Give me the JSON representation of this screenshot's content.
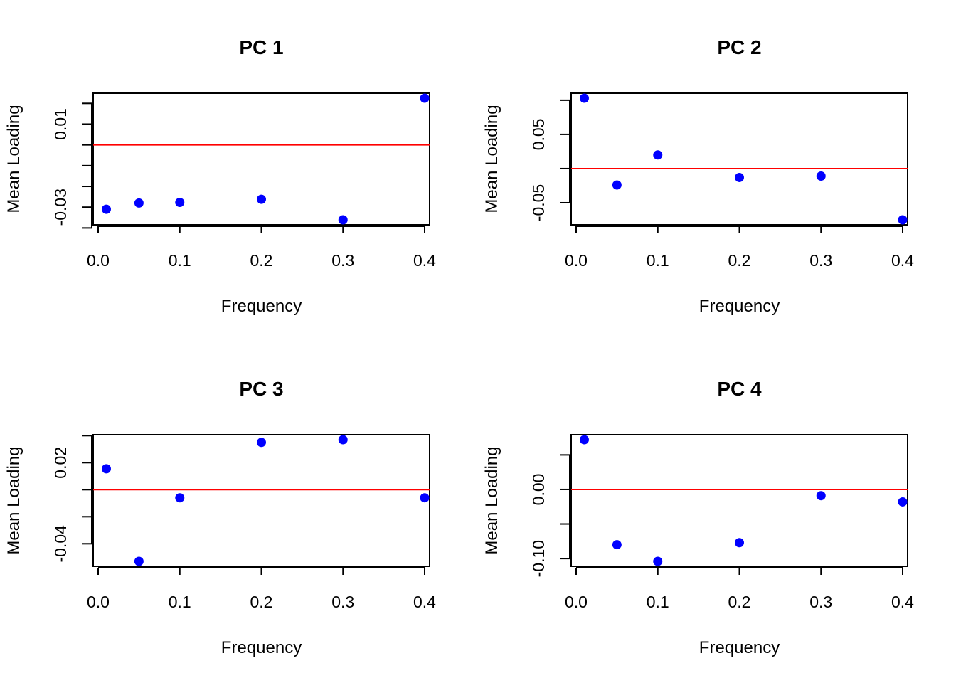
{
  "colors": {
    "points": "#0000ff",
    "reference_line": "#ff0000",
    "axes": "#000000"
  },
  "chart_data": [
    {
      "type": "scatter",
      "title": "PC 1",
      "xlabel": "Frequency",
      "ylabel": "Mean Loading",
      "x": [
        0.01,
        0.05,
        0.1,
        0.2,
        0.3,
        0.4
      ],
      "y": [
        -0.031,
        -0.028,
        -0.0277,
        -0.0262,
        -0.0361,
        0.0225
      ],
      "xlim": [
        0.0,
        0.4
      ],
      "ylim": [
        -0.0361,
        0.0225
      ],
      "x_ticks": [
        0.0,
        0.1,
        0.2,
        0.3,
        0.4
      ],
      "x_tick_labels": [
        "0.0",
        "0.1",
        "0.2",
        "0.3",
        "0.4"
      ],
      "y_ticks": [
        -0.04,
        -0.03,
        -0.02,
        -0.01,
        0.0,
        0.01,
        0.02
      ],
      "y_tick_labels": [
        {
          "value": -0.03,
          "text": "-0.03"
        },
        {
          "value": 0.01,
          "text": "0.01"
        }
      ],
      "hline": 0,
      "grid": false
    },
    {
      "type": "scatter",
      "title": "PC 2",
      "xlabel": "Frequency",
      "ylabel": "Mean Loading",
      "x": [
        0.01,
        0.05,
        0.1,
        0.2,
        0.3,
        0.4
      ],
      "y": [
        0.103,
        -0.024,
        0.02,
        -0.013,
        -0.011,
        -0.075
      ],
      "xlim": [
        0.0,
        0.4
      ],
      "ylim": [
        -0.075,
        0.103
      ],
      "x_ticks": [
        0.0,
        0.1,
        0.2,
        0.3,
        0.4
      ],
      "x_tick_labels": [
        "0.0",
        "0.1",
        "0.2",
        "0.3",
        "0.4"
      ],
      "y_ticks": [
        -0.05,
        0.0,
        0.05,
        0.1
      ],
      "y_tick_labels": [
        {
          "value": -0.05,
          "text": "-0.05"
        },
        {
          "value": 0.05,
          "text": "0.05"
        }
      ],
      "hline": 0,
      "grid": false
    },
    {
      "type": "scatter",
      "title": "PC 3",
      "xlabel": "Frequency",
      "ylabel": "Mean Loading",
      "x": [
        0.01,
        0.05,
        0.1,
        0.2,
        0.3,
        0.4
      ],
      "y": [
        0.0155,
        -0.053,
        -0.006,
        0.035,
        0.037,
        -0.006
      ],
      "xlim": [
        0.0,
        0.4
      ],
      "ylim": [
        -0.053,
        0.037
      ],
      "x_ticks": [
        0.0,
        0.1,
        0.2,
        0.3,
        0.4
      ],
      "x_tick_labels": [
        "0.0",
        "0.1",
        "0.2",
        "0.3",
        "0.4"
      ],
      "y_ticks": [
        -0.04,
        -0.02,
        0.0,
        0.02,
        0.04
      ],
      "y_tick_labels": [
        {
          "value": -0.04,
          "text": "-0.04"
        },
        {
          "value": 0.02,
          "text": "0.02"
        }
      ],
      "hline": 0,
      "grid": false
    },
    {
      "type": "scatter",
      "title": "PC 4",
      "xlabel": "Frequency",
      "ylabel": "Mean Loading",
      "x": [
        0.01,
        0.05,
        0.1,
        0.2,
        0.3,
        0.4
      ],
      "y": [
        0.072,
        -0.08,
        -0.104,
        -0.077,
        -0.009,
        -0.018
      ],
      "xlim": [
        0.0,
        0.4
      ],
      "ylim": [
        -0.104,
        0.072
      ],
      "x_ticks": [
        0.0,
        0.1,
        0.2,
        0.3,
        0.4
      ],
      "x_tick_labels": [
        "0.0",
        "0.1",
        "0.2",
        "0.3",
        "0.4"
      ],
      "y_ticks": [
        -0.1,
        -0.05,
        0.0,
        0.05
      ],
      "y_tick_labels": [
        {
          "value": -0.1,
          "text": "-0.10"
        },
        {
          "value": 0.0,
          "text": "0.00"
        }
      ],
      "hline": 0,
      "grid": false
    }
  ]
}
